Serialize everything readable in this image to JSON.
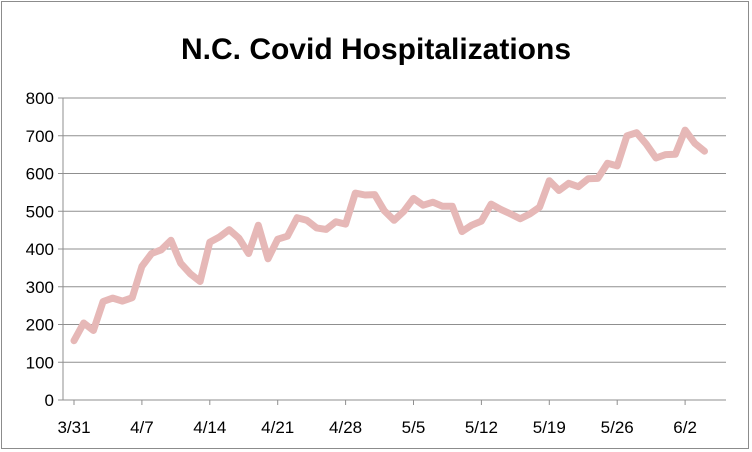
{
  "chart_data": {
    "type": "line",
    "title": "N.C. Covid Hospitalizations",
    "xlabel": "",
    "ylabel": "",
    "ylim": [
      0,
      800
    ],
    "y_ticks": [
      0,
      100,
      200,
      300,
      400,
      500,
      600,
      700,
      800
    ],
    "grid": true,
    "legend": "none",
    "line_color": "#e6b8b7",
    "x_tick_labels": [
      "3/31",
      "4/7",
      "4/14",
      "4/21",
      "4/28",
      "5/5",
      "5/12",
      "5/19",
      "5/26",
      "6/2"
    ],
    "x": [
      "3/31",
      "4/1",
      "4/2",
      "4/3",
      "4/4",
      "4/5",
      "4/6",
      "4/7",
      "4/8",
      "4/9",
      "4/10",
      "4/11",
      "4/12",
      "4/13",
      "4/14",
      "4/15",
      "4/16",
      "4/17",
      "4/18",
      "4/19",
      "4/20",
      "4/21",
      "4/22",
      "4/23",
      "4/24",
      "4/25",
      "4/26",
      "4/27",
      "4/28",
      "4/29",
      "4/30",
      "5/1",
      "5/2",
      "5/3",
      "5/4",
      "5/5",
      "5/6",
      "5/7",
      "5/8",
      "5/9",
      "5/10",
      "5/11",
      "5/12",
      "5/13",
      "5/14",
      "5/15",
      "5/16",
      "5/17",
      "5/18",
      "5/19",
      "5/20",
      "5/21",
      "5/22",
      "5/23",
      "5/24",
      "5/25",
      "5/26",
      "5/27",
      "5/28",
      "5/29",
      "5/30",
      "5/31",
      "6/1",
      "6/2",
      "6/3",
      "6/4"
    ],
    "series": [
      {
        "values": [
          157,
          204,
          184,
          261,
          270,
          262,
          271,
          354,
          388,
          398,
          423,
          362,
          334,
          314,
          418,
          432,
          451,
          429,
          388,
          463,
          374,
          426,
          434,
          483,
          476,
          456,
          452,
          472,
          466,
          548,
          543,
          544,
          501,
          476,
          500,
          534,
          516,
          524,
          513,
          513,
          446,
          463,
          474,
          519,
          505,
          493,
          480,
          493,
          511,
          581,
          555,
          574,
          565,
          586,
          587,
          627,
          620,
          700,
          708,
          678,
          641,
          650,
          651,
          715,
          680,
          659
        ]
      }
    ]
  }
}
